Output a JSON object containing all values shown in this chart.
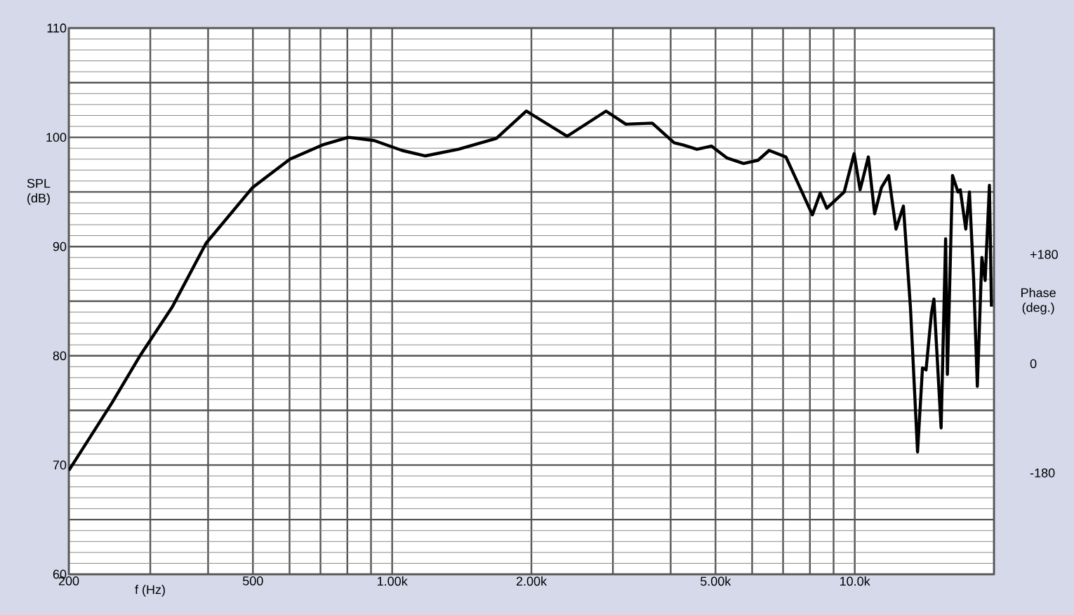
{
  "chart_data": {
    "type": "line",
    "xlabel": "f (Hz)",
    "ylabel": "SPL (dB)",
    "y2label": "Phase (deg.)",
    "log": "x",
    "grid": true,
    "marker": "none",
    "line_style": "solid",
    "xlim": [
      200,
      20000
    ],
    "ylim": [
      60,
      110
    ],
    "y2lim": [
      -347,
      553
    ],
    "xticks": [
      200,
      {
        "value": 300,
        "label": null
      },
      {
        "value": 400,
        "label": null
      },
      500,
      {
        "value": 600,
        "label": null
      },
      {
        "value": 700,
        "label": null
      },
      {
        "value": 800,
        "label": null
      },
      {
        "value": 900,
        "label": null
      },
      {
        "value": 1000,
        "label": "1.00k"
      },
      {
        "value": 2000,
        "label": "2.00k"
      },
      {
        "value": 3000,
        "label": null
      },
      {
        "value": 4000,
        "label": null
      },
      {
        "value": 5000,
        "label": "5.00k"
      },
      {
        "value": 6000,
        "label": null
      },
      {
        "value": 7000,
        "label": null
      },
      {
        "value": 8000,
        "label": null
      },
      {
        "value": 9000,
        "label": null
      },
      {
        "value": 10000,
        "label": "10.0k"
      },
      {
        "value": 20000,
        "label": null
      }
    ],
    "yticks": [
      60,
      {
        "value": 65,
        "label": null
      },
      70,
      {
        "value": 75,
        "label": null
      },
      80,
      {
        "value": 85,
        "label": null
      },
      90,
      {
        "value": 95,
        "label": null
      },
      100,
      {
        "value": 105,
        "label": null
      },
      110
    ],
    "y2ticks": [
      {
        "value": 180,
        "label": "+180"
      },
      0,
      -180
    ],
    "series": [
      {
        "color": "#000000",
        "x": [
          200,
          248,
          285,
          335,
          396,
          499,
          601,
          707,
          804,
          915,
          1050,
          1180,
          1390,
          1680,
          1950,
          2390,
          2900,
          3200,
          3650,
          4070,
          4250,
          4560,
          4900,
          5300,
          5750,
          6180,
          6530,
          7100,
          7690,
          8100,
          8420,
          8700,
          9490,
          9970,
          10270,
          10700,
          11040,
          11420,
          11840,
          12280,
          12740,
          13200,
          13670,
          14010,
          14260,
          14650,
          14830,
          15370,
          15720,
          15860,
          16270,
          16720,
          16910,
          17380,
          17700,
          18080,
          18410,
          18830,
          19140,
          19550,
          19750
        ],
        "values": [
          69.5,
          75.7,
          80.0,
          84.5,
          90.3,
          95.4,
          98.0,
          99.3,
          100.0,
          99.7,
          98.8,
          98.3,
          98.9,
          99.9,
          102.4,
          100.1,
          102.4,
          101.2,
          101.3,
          99.5,
          99.3,
          98.9,
          99.2,
          98.1,
          97.6,
          97.9,
          98.8,
          98.2,
          95.0,
          92.9,
          94.9,
          93.5,
          95.0,
          98.5,
          95.2,
          98.2,
          93.0,
          95.4,
          96.5,
          91.6,
          93.7,
          84.3,
          71.2,
          78.9,
          78.7,
          83.9,
          85.2,
          73.4,
          90.7,
          78.3,
          96.5,
          95.0,
          95.2,
          91.6,
          95.0,
          86.9,
          77.2,
          89.0,
          86.9,
          95.6,
          84.5
        ]
      }
    ]
  }
}
